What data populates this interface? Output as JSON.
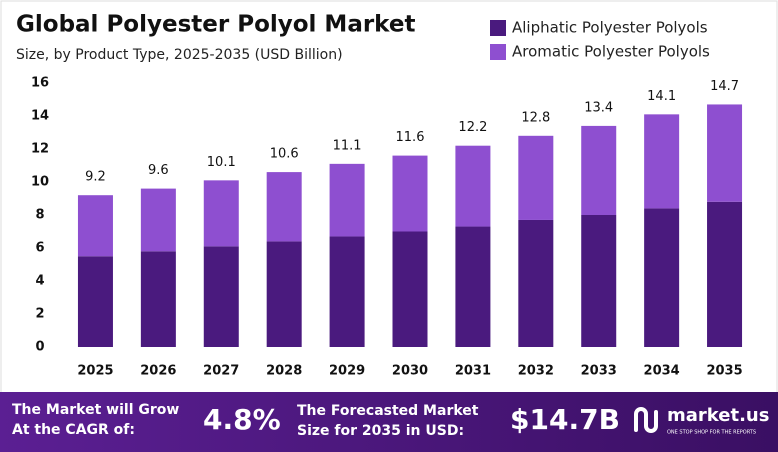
{
  "chart_data": {
    "type": "stacked_bar",
    "title": "Global Polyester Polyol Market",
    "subtitle": "Size, by Product Type, 2025-2035 (USD Billion)",
    "categories": [
      "2025",
      "2026",
      "2027",
      "2028",
      "2029",
      "2030",
      "2031",
      "2032",
      "2033",
      "2034",
      "2035"
    ],
    "series": [
      {
        "name": "Aliphatic Polyester Polyols",
        "color": "#4a1a7e",
        "values": [
          5.5,
          5.8,
          6.1,
          6.4,
          6.7,
          7.0,
          7.3,
          7.7,
          8.0,
          8.4,
          8.8
        ]
      },
      {
        "name": "Aromatic Polyester Polyols",
        "color": "#8e4fd0",
        "values": [
          3.7,
          3.8,
          4.0,
          4.2,
          4.4,
          4.6,
          4.9,
          5.1,
          5.4,
          5.7,
          5.9
        ]
      }
    ],
    "totals": [
      9.2,
      9.6,
      10.1,
      10.6,
      11.1,
      11.6,
      12.2,
      12.8,
      13.4,
      14.1,
      14.7
    ],
    "ylim": [
      0,
      16
    ],
    "yticks": [
      0,
      2,
      4,
      6,
      8,
      10,
      12,
      14,
      16
    ],
    "grid": false,
    "legend": "top-right"
  },
  "footer": {
    "cagr_text": [
      "The Market will Grow",
      "At the CAGR of:"
    ],
    "cagr": "4.8%",
    "forecast_text": [
      "The Forecasted Market",
      "Size for 2035 in USD:"
    ],
    "forecast": "$14.7B",
    "brand": "market.us",
    "tagline": "ONE STOP SHOP FOR THE REPORTS"
  }
}
